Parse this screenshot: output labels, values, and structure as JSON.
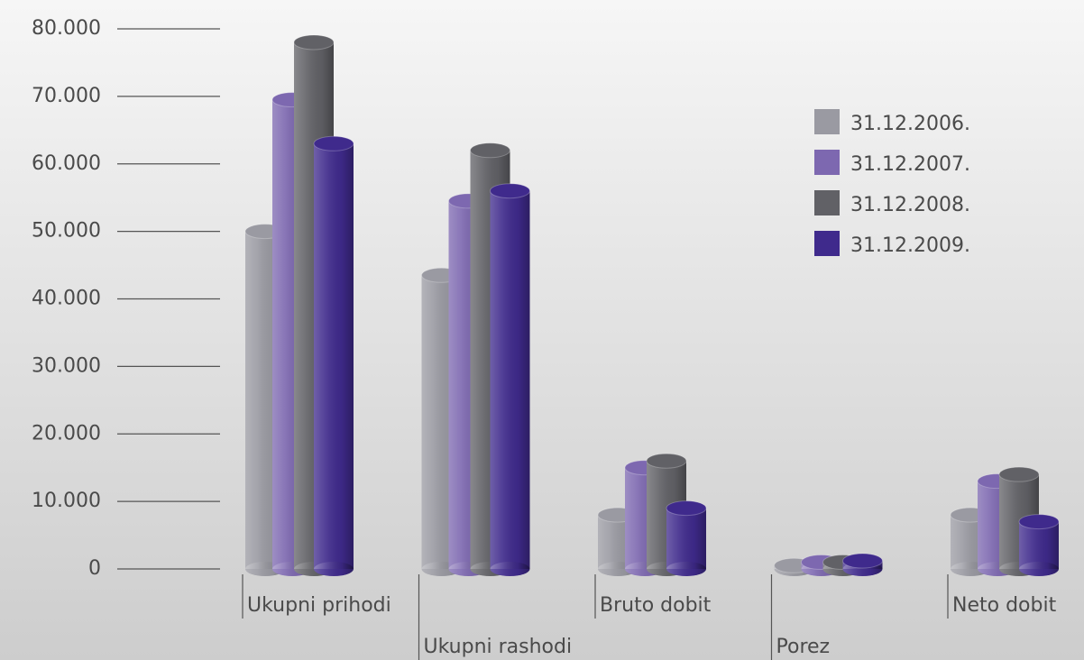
{
  "chart_data": {
    "type": "bar",
    "categories": [
      "Ukupni prihodi",
      "Ukupni rashodi",
      "Bruto dobit",
      "Porez",
      "Neto dobit"
    ],
    "series": [
      {
        "name": "31.12.2006.",
        "color": "#9a9aa2",
        "values": [
          50000,
          43500,
          8000,
          500,
          8000
        ]
      },
      {
        "name": "31.12.2007.",
        "color": "#7d68b0",
        "values": [
          69500,
          54500,
          15000,
          1000,
          13000
        ]
      },
      {
        "name": "31.12.2008.",
        "color": "#616166",
        "values": [
          78000,
          62000,
          16000,
          1000,
          14000
        ]
      },
      {
        "name": "31.12.2009.",
        "color": "#3f2a8c",
        "values": [
          63000,
          56000,
          9000,
          1200,
          7000
        ]
      }
    ],
    "ylim": [
      0,
      80000
    ],
    "yticks": [
      0,
      {
        "value": 10000,
        "label": "10.000"
      },
      {
        "value": 20000,
        "label": "20.000"
      },
      {
        "value": 30000,
        "label": "30.000"
      },
      {
        "value": 40000,
        "label": "40.000"
      },
      {
        "value": 50000,
        "label": "50.000"
      },
      {
        "value": 60000,
        "label": "60.000"
      },
      {
        "value": 70000,
        "label": "70.000"
      },
      {
        "value": 80000,
        "label": "80.000"
      }
    ],
    "legend": "upper right"
  }
}
